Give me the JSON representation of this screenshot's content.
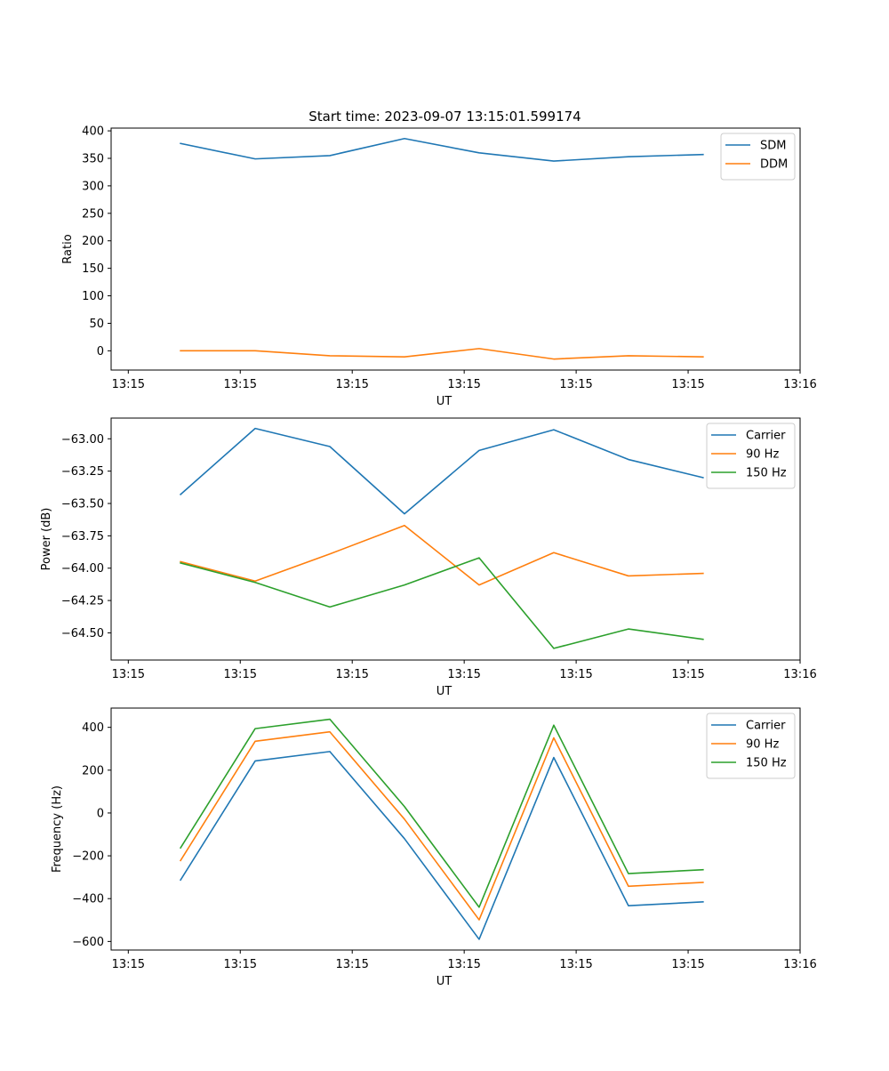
{
  "figure_title": "Start time: 2023-09-07 13:15:01.599174",
  "colors": {
    "blue": "#1f77b4",
    "orange": "#ff7f0e",
    "green": "#2ca02c"
  },
  "chart_data": [
    {
      "type": "line",
      "title": "Start time: 2023-09-07 13:15:01.599174",
      "xlabel": "UT",
      "ylabel": "Ratio",
      "xlim": [
        -0.23,
        9.0
      ],
      "x": [
        0.7,
        1.7,
        2.7,
        3.7,
        4.7,
        5.7,
        6.7,
        7.7
      ],
      "xticks": [
        0,
        1.5,
        3,
        4.5,
        6,
        7.5,
        9
      ],
      "xtick_labels": [
        "13:15",
        "13:15",
        "13:15",
        "13:15",
        "13:15",
        "13:15",
        "13:16"
      ],
      "ylim": [
        -35,
        405
      ],
      "yticks": [
        0,
        50,
        100,
        150,
        200,
        250,
        300,
        350,
        400
      ],
      "ytick_labels": [
        "0",
        "50",
        "100",
        "150",
        "200",
        "250",
        "300",
        "350",
        "400"
      ],
      "legend_position": "top-right",
      "series": [
        {
          "name": "SDM",
          "color": "#1f77b4",
          "values": [
            377,
            349,
            355,
            386,
            360,
            345,
            353,
            357
          ]
        },
        {
          "name": "DDM",
          "color": "#ff7f0e",
          "values": [
            0,
            0,
            -9,
            -11,
            4,
            -15,
            -9,
            -11
          ]
        }
      ]
    },
    {
      "type": "line",
      "title": "",
      "xlabel": "UT",
      "ylabel": "Power (dB)",
      "xlim": [
        -0.23,
        9.0
      ],
      "x": [
        0.7,
        1.7,
        2.7,
        3.7,
        4.7,
        5.7,
        6.7,
        7.7
      ],
      "xticks": [
        0,
        1.5,
        3,
        4.5,
        6,
        7.5,
        9
      ],
      "xtick_labels": [
        "13:15",
        "13:15",
        "13:15",
        "13:15",
        "13:15",
        "13:15",
        "13:16"
      ],
      "ylim": [
        -64.71,
        -62.84
      ],
      "yticks": [
        -64.5,
        -64.25,
        -64.0,
        -63.75,
        -63.5,
        -63.25,
        -63.0
      ],
      "ytick_labels": [
        "−64.50",
        "−64.25",
        "−64.00",
        "−63.75",
        "−63.50",
        "−63.25",
        "−63.00"
      ],
      "legend_position": "top-right",
      "series": [
        {
          "name": "Carrier",
          "color": "#1f77b4",
          "values": [
            -63.43,
            -62.92,
            -63.06,
            -63.58,
            -63.09,
            -62.93,
            -63.16,
            -63.3
          ]
        },
        {
          "name": "90 Hz",
          "color": "#ff7f0e",
          "values": [
            -63.95,
            -64.1,
            -63.89,
            -63.67,
            -64.13,
            -63.88,
            -64.06,
            -64.04
          ]
        },
        {
          "name": "150 Hz",
          "color": "#2ca02c",
          "values": [
            -63.96,
            -64.11,
            -64.3,
            -64.13,
            -63.92,
            -64.62,
            -64.47,
            -64.55
          ]
        }
      ]
    },
    {
      "type": "line",
      "title": "",
      "xlabel": "UT",
      "ylabel": "Frequency (Hz)",
      "xlim": [
        -0.23,
        9.0
      ],
      "x": [
        0.7,
        1.7,
        2.7,
        3.7,
        4.7,
        5.7,
        6.7,
        7.7
      ],
      "xticks": [
        0,
        1.5,
        3,
        4.5,
        6,
        7.5,
        9
      ],
      "xtick_labels": [
        "13:15",
        "13:15",
        "13:15",
        "13:15",
        "13:15",
        "13:15",
        "13:16"
      ],
      "ylim": [
        -640,
        490
      ],
      "yticks": [
        -600,
        -400,
        -200,
        0,
        200,
        400
      ],
      "ytick_labels": [
        "−600",
        "−400",
        "−200",
        "0",
        "200",
        "400"
      ],
      "legend_position": "top-right",
      "series": [
        {
          "name": "Carrier",
          "color": "#1f77b4",
          "values": [
            -313,
            243,
            287,
            -120,
            -590,
            259,
            -433,
            -415
          ]
        },
        {
          "name": "90 Hz",
          "color": "#ff7f0e",
          "values": [
            -222,
            335,
            379,
            -29,
            -499,
            351,
            -342,
            -324
          ]
        },
        {
          "name": "150 Hz",
          "color": "#2ca02c",
          "values": [
            -163,
            394,
            438,
            30,
            -440,
            410,
            -283,
            -265
          ]
        }
      ]
    }
  ]
}
